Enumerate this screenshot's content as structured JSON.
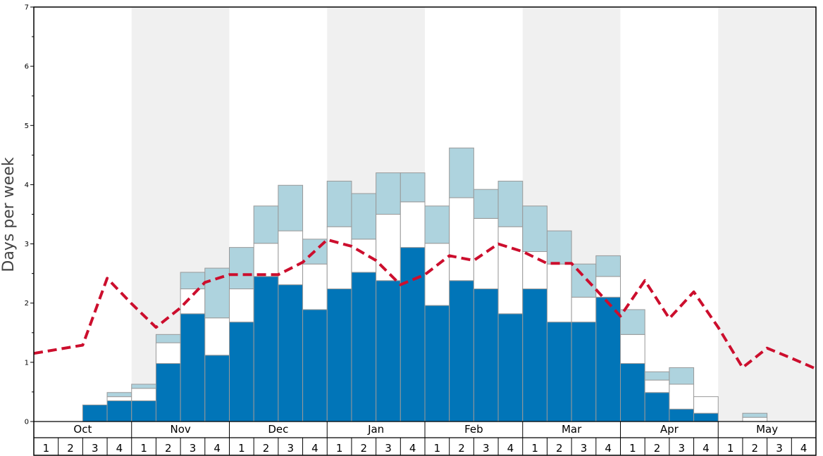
{
  "chart_data": {
    "type": "bar",
    "subtype": "stacked",
    "ylabel": "Days per week",
    "ylim": [
      0,
      7
    ],
    "yticks": [
      0,
      1,
      2,
      3,
      4,
      5,
      6,
      7
    ],
    "months": [
      "Oct",
      "Nov",
      "Dec",
      "Jan",
      "Feb",
      "Mar",
      "Apr",
      "May"
    ],
    "week_labels": [
      "1",
      "2",
      "3",
      "4"
    ],
    "shaded_months": [
      "Nov",
      "Jan",
      "Mar",
      "May"
    ],
    "colors": {
      "dark_blue": "#0175b8",
      "white": "#ffffff",
      "light_blue": "#aed3de",
      "bar_stroke": "#999999",
      "line": "#cc0e2d",
      "shade": "#f0f0f0"
    },
    "series": [
      {
        "color": "#0175b8",
        "values": [
          0,
          0,
          0.28,
          0.35,
          0.35,
          0.98,
          1.82,
          1.12,
          1.68,
          2.45,
          2.31,
          1.89,
          2.24,
          2.52,
          2.38,
          2.94,
          1.96,
          2.38,
          2.24,
          1.82,
          2.24,
          1.68,
          1.68,
          2.1,
          0.98,
          0.49,
          0.21,
          0.14,
          0,
          0,
          0,
          0
        ]
      },
      {
        "color": "#ffffff",
        "values": [
          0,
          0,
          0,
          0.07,
          0.21,
          0.35,
          0.42,
          0.63,
          0.56,
          0.56,
          0.91,
          0.77,
          1.05,
          0.56,
          1.12,
          0.77,
          1.05,
          1.4,
          1.19,
          1.47,
          0.63,
          0.98,
          0.42,
          0.35,
          0.49,
          0.21,
          0.42,
          0.28,
          0,
          0.07,
          0,
          0
        ]
      },
      {
        "color": "#aed3de",
        "values": [
          0,
          0,
          0,
          0.07,
          0.07,
          0.14,
          0.28,
          0.84,
          0.7,
          0.63,
          0.77,
          0.42,
          0.77,
          0.77,
          0.7,
          0.49,
          0.63,
          0.84,
          0.49,
          0.77,
          0.77,
          0.56,
          0.56,
          0.35,
          0.42,
          0.14,
          0.28,
          0,
          0,
          0.07,
          0,
          0
        ]
      }
    ],
    "line": {
      "color": "#cc0e2d",
      "dashed": true,
      "values": [
        1.15,
        1.22,
        1.29,
        2.42,
        1.99,
        1.59,
        1.92,
        2.35,
        2.48,
        2.48,
        2.48,
        2.69,
        3.07,
        2.96,
        2.72,
        2.31,
        2.48,
        2.8,
        2.72,
        3.0,
        2.87,
        2.67,
        2.67,
        2.23,
        1.78,
        2.38,
        1.74,
        2.19,
        1.59,
        0.91,
        1.24,
        1.07,
        0.89
      ]
    }
  }
}
